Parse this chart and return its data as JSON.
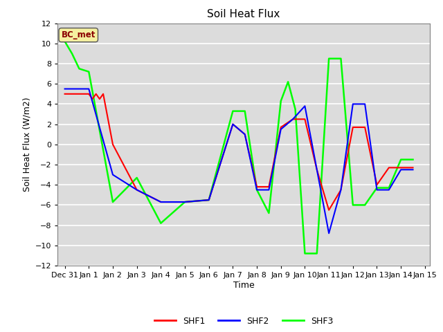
{
  "title": "Soil Heat Flux",
  "xlabel": "Time",
  "ylabel": "Soil Heat Flux (W/m2)",
  "ylim": [
    -12,
    12
  ],
  "background_color": "#dcdcdc",
  "annotation_text": "BC_met",
  "annotation_color": "#8B0000",
  "annotation_bg": "#f5f0a0",
  "grid_color": "white",
  "SHF1_x": [
    0,
    1,
    1.15,
    1.3,
    1.45,
    1.6,
    2,
    3,
    4,
    5,
    6,
    7,
    7.5,
    8,
    8.5,
    9,
    9.5,
    10,
    10.5,
    11,
    11.5,
    12,
    12.5,
    13,
    13.5,
    14,
    14.5
  ],
  "SHF1_y": [
    5.0,
    5.0,
    4.5,
    5.0,
    4.5,
    5.0,
    0.0,
    -4.5,
    -5.7,
    -5.7,
    -5.5,
    2.0,
    1.0,
    -4.2,
    -4.2,
    1.7,
    2.5,
    2.5,
    -2.5,
    -6.5,
    -4.5,
    1.7,
    1.7,
    -4.0,
    -2.3,
    -2.3,
    -2.3
  ],
  "SHF2_x": [
    0,
    1,
    2,
    3,
    4,
    5,
    6,
    7,
    7.5,
    8,
    8.5,
    9,
    9.5,
    10,
    10.5,
    11,
    11.5,
    12,
    12.5,
    13,
    13.5,
    14,
    14.5
  ],
  "SHF2_y": [
    5.5,
    5.5,
    -3.0,
    -4.5,
    -5.7,
    -5.7,
    -5.5,
    2.0,
    1.0,
    -4.5,
    -4.5,
    1.5,
    2.5,
    3.8,
    -2.5,
    -8.8,
    -4.5,
    4.0,
    4.0,
    -4.5,
    -4.5,
    -2.5,
    -2.5
  ],
  "SHF3_x": [
    0,
    0.3,
    0.6,
    1,
    2,
    3,
    4,
    5,
    6,
    7,
    7.5,
    8,
    8.5,
    9,
    9.3,
    9.6,
    10,
    10.5,
    11,
    11.5,
    12,
    12.5,
    13,
    13.5,
    14,
    14.5
  ],
  "SHF3_y": [
    10.2,
    9.0,
    7.5,
    7.2,
    -5.7,
    -3.3,
    -7.8,
    -5.7,
    -5.5,
    3.3,
    3.3,
    -4.5,
    -6.8,
    4.3,
    6.2,
    3.5,
    -10.8,
    -10.8,
    8.5,
    8.5,
    -6.0,
    -6.0,
    -4.3,
    -4.3,
    -1.5,
    -1.5
  ],
  "xtick_labels": [
    "Dec 31",
    "Jan 1",
    "Jan 2",
    "Jan 3",
    "Jan 4",
    "Jan 5",
    "Jan 6",
    "Jan 7",
    "Jan 8",
    "Jan 9",
    "Jan 10",
    "Jan 11",
    "Jan 12",
    "Jan 13",
    "Jan 14",
    "Jan 15"
  ],
  "xtick_positions": [
    0,
    1,
    2,
    3,
    4,
    5,
    6,
    7,
    8,
    9,
    10,
    11,
    12,
    13,
    14,
    15
  ],
  "xlim": [
    -0.3,
    15.2
  ],
  "legend_items": [
    "SHF1",
    "SHF2",
    "SHF3"
  ],
  "legend_colors": [
    "red",
    "blue",
    "lime"
  ]
}
